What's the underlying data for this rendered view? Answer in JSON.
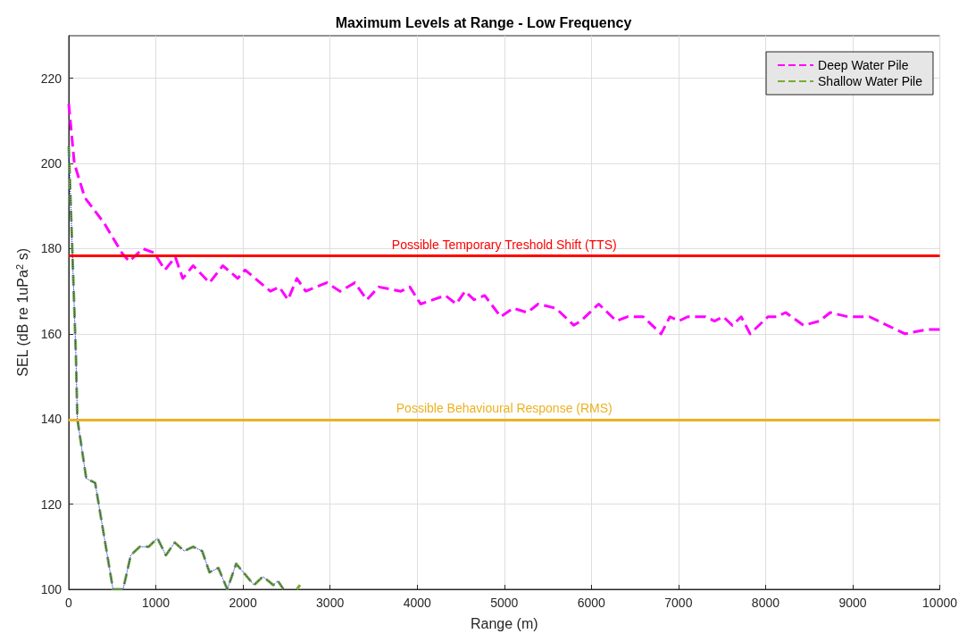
{
  "chart_data": {
    "type": "line",
    "title": "Maximum Levels at Range - Low Frequency",
    "xlabel": "Range (m)",
    "ylabel": "SEL (dB re 1uPa$^{2}$ s)",
    "xlim": [
      0,
      10000
    ],
    "xticks": [
      0,
      1000,
      2000,
      3000,
      4000,
      5000,
      6000,
      7000,
      8000,
      9000,
      10000
    ],
    "ylim": [
      100,
      230
    ],
    "yticks": [
      100,
      120,
      140,
      160,
      180,
      200,
      220
    ],
    "grid": true,
    "legend": "top right",
    "marker": "none",
    "series": [
      {
        "name": "Deep Water Pile",
        "color": "#ff00ff",
        "line_style": "dashed",
        "x": [
          0,
          64,
          184,
          406,
          610,
          695,
          849,
          982,
          1104,
          1224,
          1309,
          1428,
          1616,
          1769,
          1940,
          2025,
          2315,
          2416,
          2517,
          2619,
          2721,
          2962,
          3115,
          3285,
          3422,
          3558,
          3814,
          3916,
          4039,
          4325,
          4448,
          4550,
          4652,
          4775,
          4959,
          5102,
          5266,
          5389,
          5593,
          5798,
          5879,
          6084,
          6288,
          6411,
          6595,
          6800,
          6902,
          7004,
          7106,
          7311,
          7413,
          7515,
          7618,
          7720,
          7822,
          8027,
          8129,
          8231,
          8436,
          8620,
          8742,
          8947,
          9069,
          9192,
          9601,
          9847,
          9969,
          10000
        ],
        "values": [
          214,
          200,
          192,
          186,
          179,
          177,
          180,
          179,
          175,
          178,
          173,
          176,
          172,
          176,
          173,
          175,
          170,
          171,
          168,
          173,
          170,
          172,
          170,
          172,
          168,
          171,
          170,
          171,
          167,
          169,
          167,
          170,
          168,
          169,
          164,
          166,
          165,
          167,
          166,
          162,
          163,
          167,
          163,
          164,
          164,
          160,
          164,
          163,
          164,
          164,
          163,
          164,
          162,
          164,
          160,
          164,
          164,
          165,
          162,
          163,
          165,
          164,
          164,
          164,
          160,
          161,
          161,
          161
        ]
      },
      {
        "name": "Shallow Water Pile",
        "color": "#77ac30",
        "line_style": "dashed",
        "x": [
          0,
          82,
          99,
          201,
          303,
          508,
          624,
          712,
          815,
          917,
          1019,
          1115,
          1217,
          1326,
          1428,
          1531,
          1616,
          1718,
          1820,
          1922,
          2004,
          2127,
          2229,
          2349,
          2400,
          2466,
          2560,
          2619,
          2655
        ],
        "values": [
          204,
          155,
          140,
          126,
          125,
          100,
          100,
          108,
          110,
          110,
          112,
          108,
          111,
          109,
          110,
          109,
          104,
          105,
          100,
          106,
          104,
          101,
          103,
          101,
          102,
          100,
          null,
          100,
          101
        ]
      },
      {
        "color": "#0000ff",
        "line_style": "dotted",
        "x": [
          0,
          82,
          99,
          201,
          303,
          508,
          624,
          712,
          815,
          917,
          1019,
          1115,
          1217,
          1326,
          1428,
          1531,
          1616,
          1718,
          1820,
          1922,
          2004,
          2127,
          2229,
          2349,
          2400,
          2466
        ],
        "values": [
          204,
          155,
          140,
          126,
          125,
          100,
          100,
          108,
          110,
          110,
          112,
          108,
          111,
          109,
          110,
          109,
          104,
          105,
          100,
          106,
          104,
          101,
          103,
          101,
          102,
          100
        ]
      }
    ],
    "ref_lines": [
      {
        "axis": "y",
        "value": 178.3,
        "label": "Possible Temporary Treshold Shift (TTS)",
        "color": "#ff0000"
      },
      {
        "axis": "y",
        "value": 139.8,
        "label": "Possible Behavioural Response (RMS)",
        "color": "#edb120"
      }
    ]
  }
}
